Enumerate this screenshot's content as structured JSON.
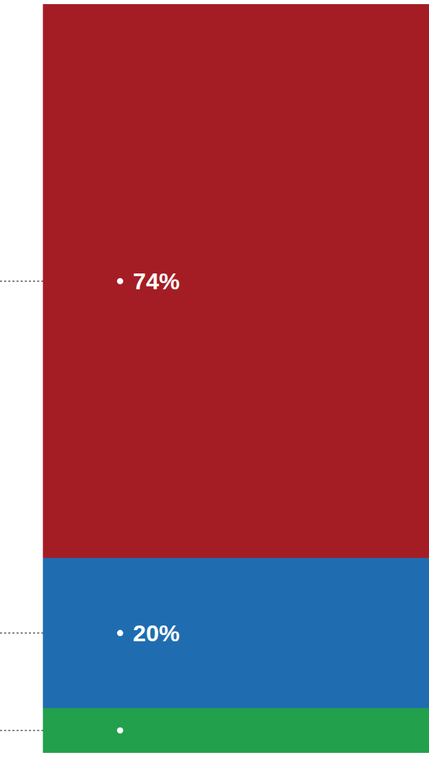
{
  "chart_data": {
    "type": "bar",
    "stacked": true,
    "tick_labels": false,
    "data_labels": true,
    "values": [
      74,
      20,
      6
    ],
    "value_labels": [
      "74%",
      "20%",
      null
    ],
    "colors": [
      "#a51d24",
      "#1f6db0",
      "#22a04b"
    ]
  }
}
